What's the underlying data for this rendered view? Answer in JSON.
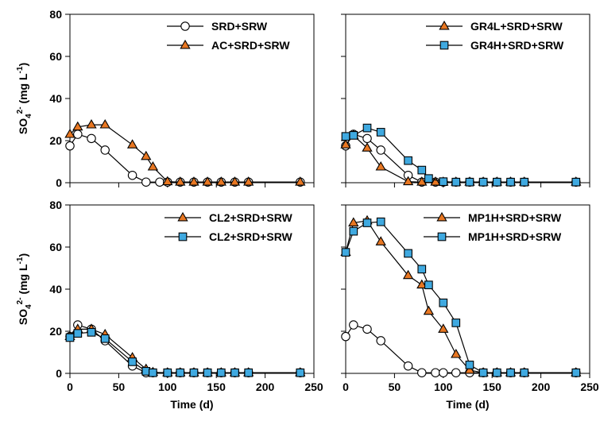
{
  "colors": {
    "orange": "#E87722",
    "blue": "#3FA9E0",
    "white": "#FFFFFF",
    "line": "#000000"
  },
  "chart_data": [
    {
      "type": "line",
      "panel": "top-left",
      "ylabel": "SO42- (mg L-1)",
      "ylabel_parts": {
        "main": "SO",
        "sub": "4",
        "sup": "2-",
        "unit_start": " (mg L",
        "unit_sup": "-1",
        "unit_end": ")"
      },
      "xlabel": "",
      "xlim": [
        0,
        250
      ],
      "ylim": [
        0,
        80
      ],
      "xticks": [
        "0",
        "50",
        "100",
        "150",
        "200",
        "250"
      ],
      "yticks": [
        "0",
        "20",
        "40",
        "60",
        "80"
      ],
      "show_xticklabels": false,
      "show_yticklabels": true,
      "legend": "top-right",
      "series": [
        {
          "name": "SRD+SRW",
          "marker": "circle",
          "color": "white",
          "x": [
            0,
            8,
            22,
            36,
            64,
            78,
            92,
            100,
            113,
            127,
            141,
            155,
            169,
            183,
            236
          ],
          "y": [
            17.5,
            23,
            21,
            15.5,
            3.5,
            0.3,
            0.3,
            0.3,
            0.3,
            0.3,
            0.3,
            0.3,
            0.3,
            0.3,
            0.3
          ]
        },
        {
          "name": "AC+SRD+SRW",
          "marker": "triangle",
          "color": "orange",
          "x": [
            0,
            8,
            22,
            36,
            64,
            78,
            85,
            100,
            113,
            127,
            141,
            155,
            169,
            183,
            236
          ],
          "y": [
            23,
            26.5,
            27.5,
            27.5,
            18,
            12.5,
            7.5,
            0.5,
            0.3,
            0.3,
            0.3,
            0.3,
            0.3,
            0.3,
            0.3
          ]
        }
      ]
    },
    {
      "type": "line",
      "panel": "top-right",
      "ylabel": "",
      "xlabel": "",
      "xlim": [
        0,
        250
      ],
      "ylim": [
        0,
        80
      ],
      "xticks": [
        "0",
        "50",
        "100",
        "150",
        "200",
        "250"
      ],
      "yticks": [
        "0",
        "20",
        "40",
        "60",
        "80"
      ],
      "show_xticklabels": false,
      "show_yticklabels": false,
      "legend": "top-right",
      "series": [
        {
          "name": "",
          "marker": "circle",
          "color": "white",
          "x": [
            0,
            8,
            22,
            36,
            64,
            78,
            92,
            100,
            113,
            127,
            141,
            155,
            169,
            183,
            236
          ],
          "y": [
            17.5,
            23,
            21,
            15.5,
            3.5,
            0.3,
            0.3,
            0.3,
            0.3,
            0.3,
            0.3,
            0.3,
            0.3,
            0.3,
            0.3
          ]
        },
        {
          "name": "GR4L+SRD+SRW",
          "marker": "triangle",
          "color": "orange",
          "x": [
            0,
            8,
            22,
            36,
            64,
            78,
            92,
            100,
            113,
            127,
            141,
            155,
            169,
            183,
            236
          ],
          "y": [
            18,
            22.5,
            16.5,
            7.5,
            0.5,
            0.3,
            0.3,
            0.3,
            0.3,
            0.3,
            0.3,
            0.3,
            0.3,
            0.3,
            0.3
          ]
        },
        {
          "name": "GR4H+SRD+SRW",
          "marker": "square",
          "color": "blue",
          "x": [
            0,
            8,
            22,
            36,
            64,
            78,
            85,
            100,
            113,
            127,
            141,
            155,
            169,
            183,
            236
          ],
          "y": [
            22,
            22.5,
            26,
            24,
            10.5,
            6,
            2,
            0.5,
            0.3,
            0.3,
            0.3,
            0.3,
            0.3,
            0.3,
            0.3
          ]
        }
      ]
    },
    {
      "type": "line",
      "panel": "bottom-left",
      "ylabel": "SO42- (mg L-1)",
      "ylabel_parts": {
        "main": "SO",
        "sub": "4",
        "sup": "2-",
        "unit_start": " (mg L",
        "unit_sup": "-1",
        "unit_end": ")"
      },
      "xlabel": "Time (d)",
      "xlim": [
        0,
        250
      ],
      "ylim": [
        0,
        80
      ],
      "xticks": [
        "0",
        "50",
        "100",
        "150",
        "200",
        "250"
      ],
      "yticks": [
        "0",
        "20",
        "40",
        "60",
        "80"
      ],
      "show_xticklabels": true,
      "show_yticklabels": true,
      "legend": "top-right",
      "series": [
        {
          "name": "",
          "marker": "circle",
          "color": "white",
          "x": [
            0,
            8,
            22,
            36,
            64,
            78,
            85,
            100,
            113,
            127,
            141,
            155,
            169,
            183,
            236
          ],
          "y": [
            17.5,
            23,
            21,
            15.5,
            3.5,
            0.3,
            0.3,
            0.3,
            0.3,
            0.3,
            0.3,
            0.3,
            0.3,
            0.3,
            0.3
          ]
        },
        {
          "name": "CL2+SRD+SRW",
          "marker": "triangle",
          "color": "orange",
          "x": [
            0,
            8,
            22,
            36,
            64,
            78,
            85,
            100,
            113,
            127,
            141,
            155,
            169,
            183,
            236
          ],
          "y": [
            17.5,
            21,
            21,
            18.5,
            7.5,
            2,
            0.5,
            0.3,
            0.3,
            0.3,
            0.3,
            0.3,
            0.3,
            0.3,
            0.3
          ]
        },
        {
          "name": "CL2+SRD+SRW",
          "marker": "square",
          "color": "blue",
          "x": [
            0,
            8,
            22,
            36,
            64,
            78,
            85,
            100,
            113,
            127,
            141,
            155,
            169,
            183,
            236
          ],
          "y": [
            17,
            19,
            19.5,
            16.5,
            5.5,
            1,
            0.3,
            0.3,
            0.3,
            0.3,
            0.3,
            0.3,
            0.3,
            0.3,
            0.3
          ]
        }
      ]
    },
    {
      "type": "line",
      "panel": "bottom-right",
      "ylabel": "",
      "xlabel": "Time (d)",
      "xlim": [
        0,
        250
      ],
      "ylim": [
        0,
        80
      ],
      "xticks": [
        "0",
        "50",
        "100",
        "150",
        "200",
        "250"
      ],
      "yticks": [
        "0",
        "20",
        "40",
        "60",
        "80"
      ],
      "show_xticklabels": true,
      "show_yticklabels": false,
      "legend": "top-right",
      "series": [
        {
          "name": "",
          "marker": "circle",
          "color": "white",
          "x": [
            0,
            8,
            22,
            36,
            64,
            78,
            92,
            100,
            113,
            127,
            141,
            155,
            169,
            183,
            236
          ],
          "y": [
            17.5,
            23,
            21,
            15.5,
            3.5,
            0.3,
            0.3,
            0.3,
            0.3,
            0.3,
            0.3,
            0.3,
            0.3,
            0.3,
            0.3
          ]
        },
        {
          "name": "MP1H+SRD+SRW",
          "marker": "triangle",
          "color": "orange",
          "x": [
            0,
            8,
            22,
            36,
            64,
            78,
            85,
            100,
            113,
            127,
            141,
            155,
            169,
            183,
            236
          ],
          "y": [
            57.5,
            71.5,
            72.5,
            62.5,
            46.5,
            42,
            29.5,
            21,
            9,
            1.5,
            0.3,
            0.3,
            0.3,
            0.3,
            0.3
          ]
        },
        {
          "name": "MP1H+SRD+SRW",
          "marker": "square",
          "color": "blue",
          "x": [
            0,
            8,
            22,
            36,
            64,
            78,
            85,
            100,
            113,
            127,
            141,
            155,
            169,
            183,
            236
          ],
          "y": [
            57.5,
            67.5,
            71.5,
            72,
            57,
            49.5,
            42,
            33.5,
            24,
            4,
            0.3,
            0.3,
            0.3,
            0.3,
            0.3
          ]
        }
      ]
    }
  ]
}
